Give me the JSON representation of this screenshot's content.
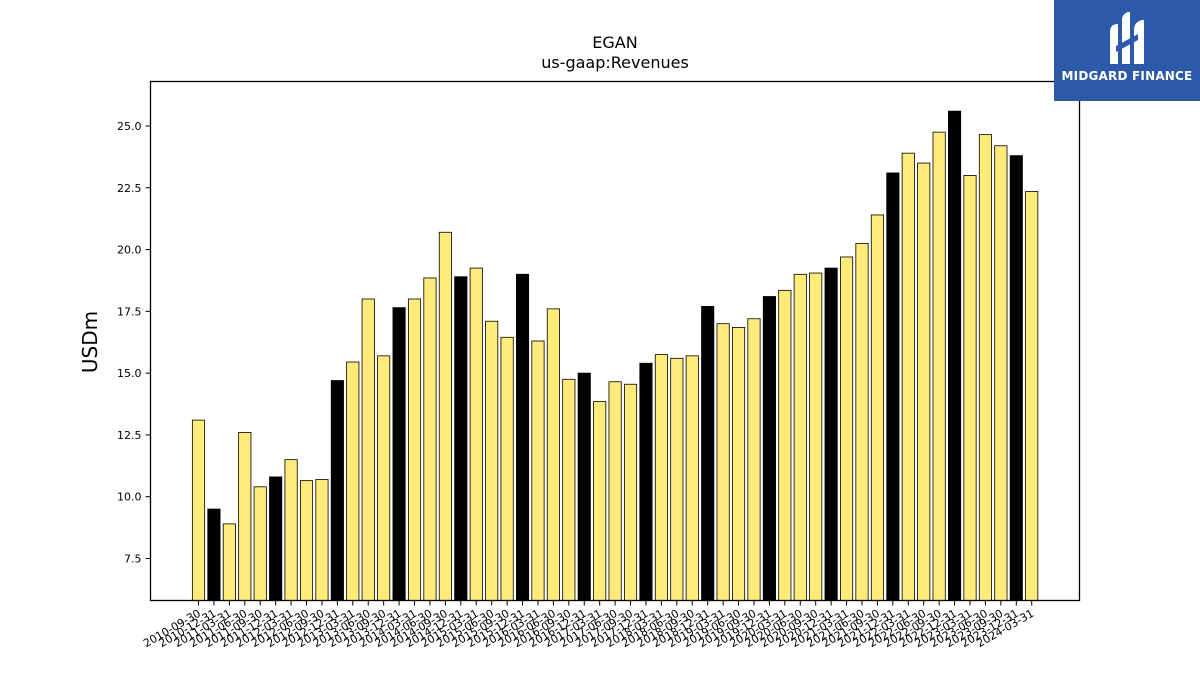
{
  "logo": {
    "text": "MIDGARD FINANCE"
  },
  "chart_data": {
    "type": "bar",
    "title": "EGAN",
    "subtitle": "us-gaap:Revenues",
    "xlabel": "",
    "ylabel": "USDm",
    "ylim": [
      5.8,
      26.8
    ],
    "yticks": [
      "7.5",
      "10.0",
      "12.5",
      "15.0",
      "17.5",
      "20.0",
      "22.5",
      "25.0"
    ],
    "grid": false,
    "colors": {
      "quarter": "#ffeb7a",
      "annual": "#000000",
      "edge": "#000000"
    },
    "categories": [
      "2010-09-30",
      "2010-12-31",
      "2011-03-31",
      "2011-06-30",
      "2011-09-30",
      "2011-12-31",
      "2012-03-31",
      "2012-06-30",
      "2012-09-30",
      "2012-12-31",
      "2013-03-31",
      "2013-06-30",
      "2013-09-30",
      "2013-12-31",
      "2014-03-31",
      "2014-06-30",
      "2014-09-30",
      "2014-12-31",
      "2015-03-31",
      "2015-06-30",
      "2015-09-30",
      "2015-12-31",
      "2016-03-31",
      "2016-06-30",
      "2016-09-30",
      "2016-12-31",
      "2017-03-31",
      "2017-06-30",
      "2017-09-30",
      "2017-12-31",
      "2018-03-31",
      "2018-06-30",
      "2018-09-30",
      "2018-12-31",
      "2019-03-31",
      "2019-06-30",
      "2019-09-30",
      "2019-12-31",
      "2020-03-31",
      "2020-06-30",
      "2020-09-30",
      "2020-12-31",
      "2021-03-31",
      "2021-06-30",
      "2021-09-30",
      "2021-12-31",
      "2022-03-31",
      "2022-06-30",
      "2022-09-30",
      "2022-12-31",
      "2023-03-31",
      "2023-06-30",
      "2023-09-30",
      "2023-12-31",
      "2024-03-31"
    ],
    "values": [
      13.1,
      9.5,
      8.9,
      12.6,
      10.4,
      10.8,
      11.5,
      10.65,
      10.7,
      14.7,
      15.45,
      18.0,
      15.7,
      17.65,
      18.0,
      18.85,
      20.7,
      18.9,
      19.25,
      17.1,
      16.45,
      19.0,
      16.3,
      17.6,
      14.75,
      15.0,
      13.85,
      14.65,
      14.55,
      15.4,
      15.75,
      15.6,
      15.7,
      17.7,
      17.0,
      16.85,
      17.2,
      18.1,
      18.35,
      19.0,
      19.05,
      19.25,
      19.7,
      20.25,
      21.4,
      23.1,
      23.9,
      23.5,
      24.75,
      25.6,
      23.0,
      24.65,
      24.2,
      23.8,
      22.35
    ],
    "annual": [
      false,
      true,
      false,
      false,
      false,
      true,
      false,
      false,
      false,
      true,
      false,
      false,
      false,
      true,
      false,
      false,
      false,
      true,
      false,
      false,
      false,
      true,
      false,
      false,
      false,
      true,
      false,
      false,
      false,
      true,
      false,
      false,
      false,
      true,
      false,
      false,
      false,
      true,
      false,
      false,
      false,
      true,
      false,
      false,
      false,
      true,
      false,
      false,
      false,
      true,
      false,
      false,
      false,
      true,
      false
    ]
  }
}
